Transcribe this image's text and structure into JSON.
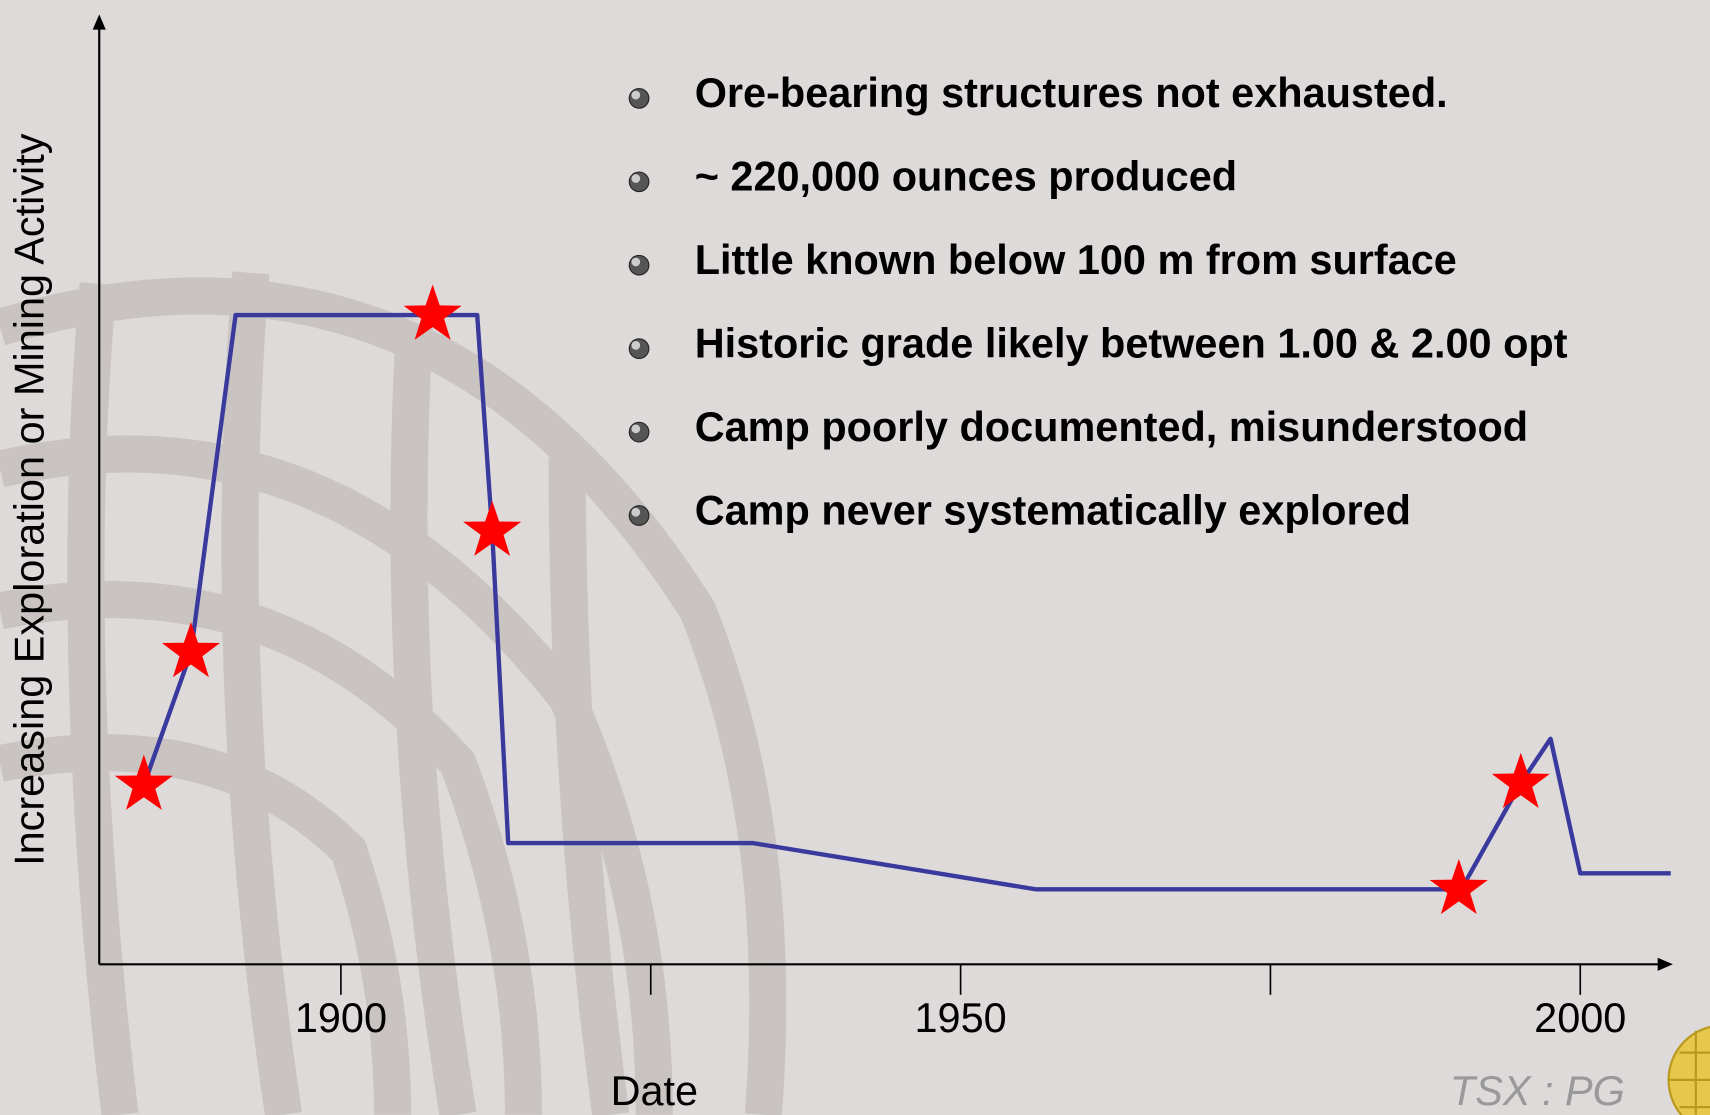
{
  "chart_data": {
    "type": "line",
    "x_label": "Date",
    "y_label": "Increasing  Exploration or Mining Activity",
    "xlim": [
      1880.5,
      2007.3
    ],
    "ylim": [
      0,
      100
    ],
    "xticks": [
      1900,
      1950,
      2000
    ],
    "minor_xticks": [
      1925,
      1975
    ],
    "series": [
      {
        "color": "#3a3a9e",
        "marker": "none",
        "x": [
          1884.1,
          1887.9,
          1891.5,
          1911.0,
          1912.2,
          1913.5,
          1933.2,
          1956.1,
          1990.4,
          1995.2,
          1997.6,
          2000.0,
          2007.3
        ],
        "values": [
          18.9,
          32.9,
          68.5,
          68.5,
          45.7,
          12.8,
          12.8,
          7.9,
          7.9,
          19.1,
          23.8,
          9.6,
          9.6
        ]
      },
      {
        "color": "#ff0000",
        "marker": "star",
        "x": [
          1884.1,
          1887.9,
          1907.4,
          1912.2,
          1990.2,
          1995.2
        ],
        "values": [
          18.9,
          32.9,
          68.5,
          45.7,
          7.9,
          19.1
        ]
      }
    ]
  },
  "bullets": [
    "Ore-bearing structures not exhausted.",
    "~ 220,000 ounces produced",
    "Little known below 100 m from surface",
    "Historic grade likely between 1.00 & 2.00 opt",
    "Camp poorly documented, misunderstood",
    "Camp never systematically explored"
  ],
  "footer": "TSX : PG"
}
